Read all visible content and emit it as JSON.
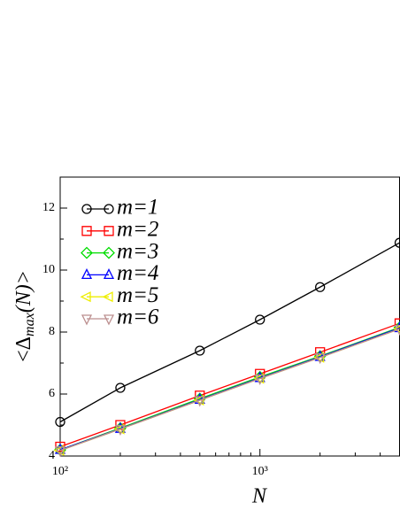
{
  "chart_data": {
    "type": "line",
    "xlabel": "N",
    "ylabel": [
      "<Δ",
      "max",
      "(N)>"
    ],
    "x": [
      100,
      200,
      500,
      1000,
      2000,
      5000
    ],
    "xlog": true,
    "xlim": [
      100,
      5000
    ],
    "xticks": [
      {
        "value": 100,
        "label": "10²"
      },
      {
        "value": 1000,
        "label": "10³"
      }
    ],
    "xticks_minor": [
      200,
      300,
      400,
      500,
      600,
      700,
      800,
      900,
      2000,
      3000,
      4000,
      5000
    ],
    "ylim": [
      4,
      13
    ],
    "yticks": [
      4,
      6,
      8,
      10,
      12
    ],
    "yticks_minor": [
      5,
      7,
      9,
      11,
      13
    ],
    "legend": "upper left",
    "series": [
      {
        "name": "m=1",
        "color": "#000000",
        "marker": "circle",
        "values": [
          5.1,
          6.2,
          7.4,
          8.4,
          9.45,
          10.88
        ]
      },
      {
        "name": "m=2",
        "color": "#ff0000",
        "marker": "square",
        "values": [
          4.3,
          5.0,
          5.95,
          6.65,
          7.35,
          8.28
        ]
      },
      {
        "name": "m=3",
        "color": "#00dd00",
        "marker": "diamond",
        "values": [
          4.2,
          4.9,
          5.85,
          6.55,
          7.22,
          8.15
        ]
      },
      {
        "name": "m=4",
        "color": "#0000ff",
        "marker": "triangle-up",
        "values": [
          4.2,
          4.88,
          5.82,
          6.52,
          7.2,
          8.13
        ]
      },
      {
        "name": "m=5",
        "color": "#eeee00",
        "marker": "triangle-left",
        "values": [
          4.18,
          4.87,
          5.8,
          6.5,
          7.18,
          8.1
        ]
      },
      {
        "name": "m=6",
        "color": "#bc8f8f",
        "marker": "triangle-down",
        "values": [
          4.18,
          4.87,
          5.8,
          6.5,
          7.18,
          8.1
        ]
      }
    ]
  }
}
